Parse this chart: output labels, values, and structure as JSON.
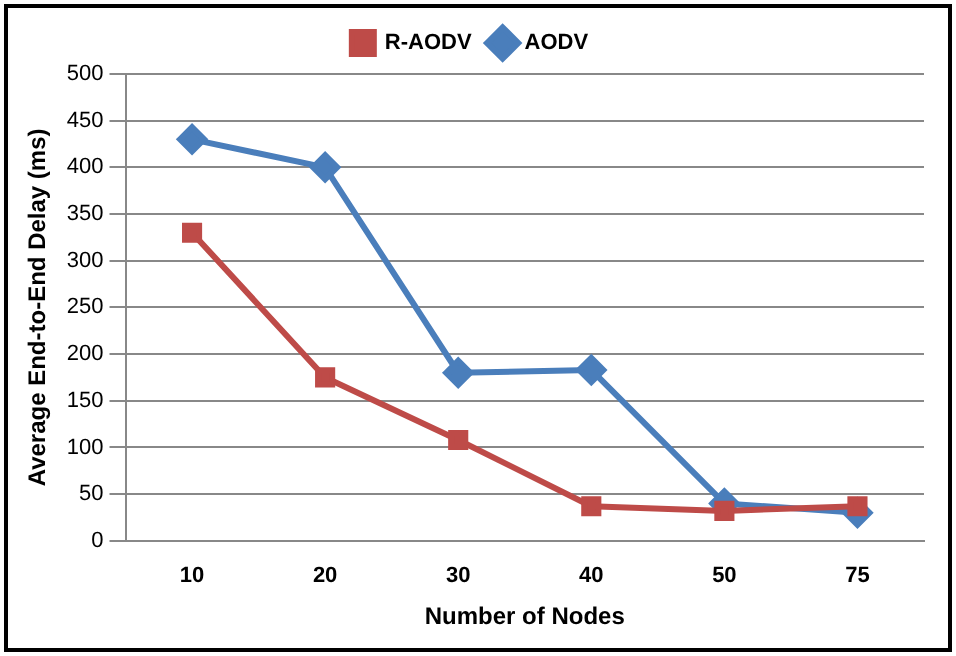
{
  "chart_data": {
    "type": "line",
    "xlabel": "Number of Nodes",
    "ylabel": "Average End-to-End Delay (ms)",
    "categories": [
      "10",
      "20",
      "30",
      "40",
      "50",
      "75"
    ],
    "series": [
      {
        "name": "AODV",
        "color": "#4a7ebb",
        "marker": "diamond",
        "values": [
          430,
          400,
          180,
          183,
          40,
          30
        ]
      },
      {
        "name": "R-AODV",
        "color": "#be4b48",
        "marker": "square",
        "values": [
          330,
          175,
          108,
          37,
          32,
          37
        ]
      }
    ],
    "ylim": [
      0,
      500
    ],
    "yticks": [
      0,
      50,
      100,
      150,
      200,
      250,
      300,
      350,
      400,
      450,
      500
    ],
    "grid": "y",
    "legend": "top",
    "line_style": "solid"
  }
}
